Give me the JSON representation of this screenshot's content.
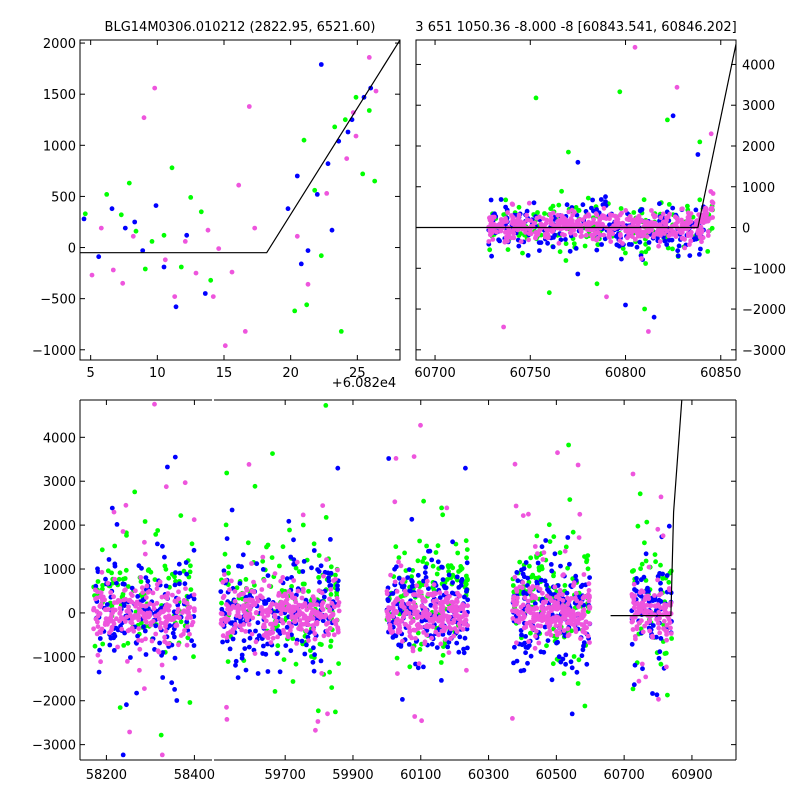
{
  "chart_data": [
    {
      "type": "scatter",
      "panel": "top-left",
      "title": "BLG14M0306.010212 (2822.95, 6521.60)",
      "xlabel": "",
      "ylabel": "",
      "xlim": [
        4.2,
        28.2
      ],
      "ylim": [
        -1100,
        2030
      ],
      "x_offset_label": "+6.082e4",
      "xticks": [
        5,
        10,
        15,
        20,
        25
      ],
      "yticks": [
        -1000,
        -500,
        0,
        500,
        1000,
        1500,
        2000
      ],
      "series": [
        {
          "color": "#00ff00",
          "points": [
            [
              4.6,
              330
            ],
            [
              6.2,
              520
            ],
            [
              7.3,
              320
            ],
            [
              7.9,
              630
            ],
            [
              8.4,
              160
            ],
            [
              9.1,
              -210
            ],
            [
              9.6,
              60
            ],
            [
              10.5,
              120
            ],
            [
              11.1,
              780
            ],
            [
              11.8,
              -190
            ],
            [
              12.5,
              490
            ],
            [
              13.3,
              350
            ],
            [
              14.0,
              -320
            ],
            [
              21.0,
              1050
            ],
            [
              21.8,
              560
            ],
            [
              22.3,
              -80
            ],
            [
              23.3,
              1180
            ],
            [
              24.1,
              1250
            ],
            [
              24.9,
              1470
            ],
            [
              25.4,
              720
            ],
            [
              21.2,
              -560
            ],
            [
              23.8,
              -820
            ],
            [
              25.9,
              1340
            ],
            [
              26.3,
              650
            ],
            [
              20.3,
              -620
            ]
          ]
        },
        {
          "color": "#0000ff",
          "points": [
            [
              4.5,
              280
            ],
            [
              5.6,
              -90
            ],
            [
              6.6,
              380
            ],
            [
              7.6,
              190
            ],
            [
              8.3,
              250
            ],
            [
              8.9,
              -30
            ],
            [
              9.9,
              410
            ],
            [
              10.5,
              -190
            ],
            [
              11.4,
              -580
            ],
            [
              12.2,
              120
            ],
            [
              13.6,
              -450
            ],
            [
              19.8,
              380
            ],
            [
              20.5,
              700
            ],
            [
              21.3,
              -30
            ],
            [
              22.0,
              520
            ],
            [
              22.8,
              820
            ],
            [
              23.6,
              1040
            ],
            [
              24.6,
              1250
            ],
            [
              25.5,
              1470
            ],
            [
              22.3,
              1790
            ],
            [
              26.0,
              1560
            ],
            [
              20.8,
              -160
            ],
            [
              23.1,
              170
            ],
            [
              24.3,
              1130
            ]
          ]
        },
        {
          "color": "#ee55dd",
          "points": [
            [
              5.1,
              -270
            ],
            [
              5.8,
              190
            ],
            [
              6.7,
              -220
            ],
            [
              7.4,
              -350
            ],
            [
              8.2,
              110
            ],
            [
              9.0,
              1270
            ],
            [
              9.8,
              1560
            ],
            [
              10.6,
              -120
            ],
            [
              11.3,
              -480
            ],
            [
              12.1,
              60
            ],
            [
              12.9,
              -250
            ],
            [
              13.8,
              170
            ],
            [
              14.6,
              -10
            ],
            [
              15.6,
              -240
            ],
            [
              16.1,
              610
            ],
            [
              16.9,
              1380
            ],
            [
              17.3,
              190
            ],
            [
              20.5,
              110
            ],
            [
              21.3,
              -360
            ],
            [
              22.7,
              530
            ],
            [
              24.2,
              870
            ],
            [
              24.7,
              1320
            ],
            [
              25.9,
              1860
            ],
            [
              26.4,
              1530
            ],
            [
              15.1,
              -960
            ],
            [
              14.2,
              -480
            ],
            [
              16.6,
              -820
            ],
            [
              24.9,
              1090
            ]
          ]
        }
      ],
      "model_line": [
        [
          4.2,
          -50
        ],
        [
          18.2,
          -50
        ],
        [
          28.2,
          2030
        ]
      ]
    },
    {
      "type": "scatter",
      "panel": "top-right",
      "title": "3 651 1050.36 -8.000 -8 [60843.541, 60846.202]",
      "xlabel": "",
      "ylabel": "",
      "xlim": [
        60690,
        60858
      ],
      "ylim": [
        -3250,
        4600
      ],
      "xticks": [
        60700,
        60750,
        60800,
        60850
      ],
      "yticks": [
        -3000,
        -2000,
        -1000,
        0,
        1000,
        2000,
        3000,
        4000
      ],
      "y_axis_side": "right",
      "cloud": {
        "x_range": [
          60728,
          60846
        ],
        "center": 0,
        "spread": 420,
        "counts": {
          "#ee55dd": 520,
          "#0000ff": 220,
          "#00ff00": 170
        }
      },
      "outliers": [
        {
          "color": "#00ff00",
          "points": [
            [
              60753,
              3180
            ],
            [
              60797,
              3330
            ],
            [
              60770,
              1850
            ],
            [
              60822,
              2640
            ],
            [
              60839,
              2100
            ],
            [
              60760,
              -1600
            ],
            [
              60785,
              -1380
            ],
            [
              60810,
              -2000
            ]
          ]
        },
        {
          "color": "#0000ff",
          "points": [
            [
              60838,
              1790
            ],
            [
              60825,
              2740
            ],
            [
              60815,
              -2200
            ],
            [
              60800,
              -1900
            ],
            [
              60775,
              1600
            ]
          ]
        },
        {
          "color": "#ee55dd",
          "points": [
            [
              60805,
              4420
            ],
            [
              60827,
              3440
            ],
            [
              60736,
              -2440
            ],
            [
              60812,
              -2550
            ],
            [
              60845,
              2300
            ],
            [
              60790,
              -1700
            ]
          ]
        }
      ],
      "model_line": [
        [
          60690,
          0
        ],
        [
          60838,
          0
        ],
        [
          60858,
          4500
        ]
      ]
    },
    {
      "type": "scatter",
      "panel": "bottom",
      "title": "",
      "xlabel": "",
      "ylabel": "",
      "ylim": [
        -3350,
        4850
      ],
      "xticks": [
        58200,
        58400,
        59700,
        59900,
        60100,
        60300,
        60500,
        60700,
        60900
      ],
      "yticks": [
        -3000,
        -2000,
        -1000,
        0,
        1000,
        2000,
        3000,
        4000
      ],
      "segments": [
        {
          "xlim": [
            58140,
            58440
          ],
          "gap_after": true
        },
        {
          "xlim": [
            59490,
            61030
          ],
          "gap_after": false
        }
      ],
      "seasons": [
        {
          "x_range": [
            58170,
            58400
          ],
          "count": 520
        },
        {
          "x_range": [
            59510,
            59860
          ],
          "count": 640
        },
        {
          "x_range": [
            60000,
            60240
          ],
          "count": 560
        },
        {
          "x_range": [
            60370,
            60600
          ],
          "count": 560
        },
        {
          "x_range": [
            60720,
            60840
          ],
          "count": 240
        }
      ],
      "model_line": [
        [
          60660,
          -60
        ],
        [
          60838,
          -60
        ],
        [
          60846,
          2300
        ],
        [
          60870,
          4850
        ]
      ]
    }
  ]
}
